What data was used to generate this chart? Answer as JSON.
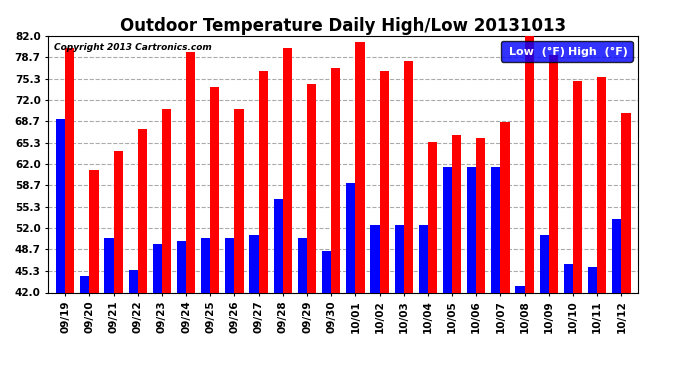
{
  "title": "Outdoor Temperature Daily High/Low 20131013",
  "copyright": "Copyright 2013 Cartronics.com",
  "legend_low": "Low  (°F)",
  "legend_high": "High  (°F)",
  "ylim": [
    42.0,
    82.0
  ],
  "yticks": [
    42.0,
    45.3,
    48.7,
    52.0,
    55.3,
    58.7,
    62.0,
    65.3,
    68.7,
    72.0,
    75.3,
    78.7,
    82.0
  ],
  "dates": [
    "09/19",
    "09/20",
    "09/21",
    "09/22",
    "09/23",
    "09/24",
    "09/25",
    "09/26",
    "09/27",
    "09/28",
    "09/29",
    "09/30",
    "10/01",
    "10/02",
    "10/03",
    "10/04",
    "10/05",
    "10/06",
    "10/07",
    "10/08",
    "10/09",
    "10/10",
    "10/11",
    "10/12"
  ],
  "highs": [
    80.0,
    61.0,
    64.0,
    67.5,
    70.5,
    79.5,
    74.0,
    70.5,
    76.5,
    80.0,
    74.5,
    77.0,
    81.0,
    76.5,
    78.0,
    65.5,
    66.5,
    66.0,
    68.5,
    82.0,
    79.0,
    75.0,
    75.5,
    70.0
  ],
  "lows": [
    69.0,
    44.5,
    50.5,
    45.5,
    49.5,
    50.0,
    50.5,
    50.5,
    51.0,
    56.5,
    50.5,
    48.5,
    59.0,
    52.5,
    52.5,
    52.5,
    61.5,
    61.5,
    61.5,
    43.0,
    51.0,
    46.5,
    46.0,
    53.5
  ],
  "bar_width": 0.38,
  "high_color": "#ff0000",
  "low_color": "#0000ff",
  "bg_color": "#ffffff",
  "grid_color": "#aaaaaa",
  "title_fontsize": 12,
  "tick_fontsize": 7.5,
  "legend_fontsize": 8
}
